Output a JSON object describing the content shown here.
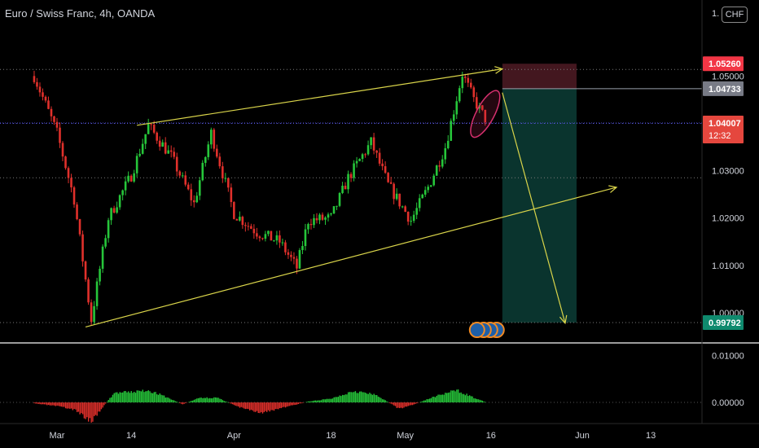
{
  "header": {
    "title": "Euro / Swiss Franc, 4h, OANDA",
    "currency_button": "CHF",
    "axis_partial": "1."
  },
  "colors": {
    "background": "#000000",
    "bull": "#26c63a",
    "bear": "#e0302b",
    "trendline": "#d9d44a",
    "stop_zone": "#4a1a22",
    "target_zone": "#0b3a33",
    "current_price_label": "#e5473e",
    "entry_label": "#787b86",
    "target_label": "#0f8a6e",
    "stop_label": "#f23645"
  },
  "chart_data": [
    {
      "type": "candlestick",
      "title": "Euro / Swiss Franc, 4h, OANDA",
      "x_tick_labels": [
        "Mar",
        "14",
        "Apr",
        "18",
        "May",
        "16",
        "Jun",
        "13"
      ],
      "y_tick_labels": [
        "1.05000",
        "1.03000",
        "1.02000",
        "1.01000",
        "1.00000"
      ],
      "ylim": [
        0.9938,
        1.0578
      ],
      "grid": false,
      "anchors": [
        [
          "Feb 25",
          1.05
        ],
        [
          "Mar 1",
          1.038
        ],
        [
          "Mar 4",
          1.024
        ],
        [
          "Mar 7",
          0.9985
        ],
        [
          "Mar 10",
          1.02
        ],
        [
          "Mar 14",
          1.029
        ],
        [
          "Mar 17",
          1.0395
        ],
        [
          "Mar 21",
          1.033
        ],
        [
          "Mar 25",
          1.023
        ],
        [
          "Mar 28",
          1.038
        ],
        [
          "Apr 1",
          1.021
        ],
        [
          "Apr 5",
          1.017
        ],
        [
          "Apr 9",
          1.015
        ],
        [
          "Apr 12",
          1.0095
        ],
        [
          "Apr 14",
          1.0195
        ],
        [
          "Apr 18",
          1.02
        ],
        [
          "Apr 21",
          1.0285
        ],
        [
          "Apr 25",
          1.036
        ],
        [
          "Apr 28",
          1.027
        ],
        [
          "May 2",
          1.0195
        ],
        [
          "May 5",
          1.0265
        ],
        [
          "May 8",
          1.035
        ],
        [
          "May 11",
          1.0505
        ],
        [
          "May 13",
          1.045
        ],
        [
          "May 15",
          1.041
        ]
      ],
      "current_price": 1.04007,
      "countdown": "12:32",
      "position": {
        "stop": 1.0526,
        "entry": 1.04733,
        "target": 0.99792,
        "start": "May 18",
        "end": "May 31"
      },
      "price_tags": [
        {
          "label": "1.05260",
          "value": 1.0526,
          "kind": "stop"
        },
        {
          "label": "1.04733",
          "value": 1.04733,
          "kind": "entry"
        },
        {
          "label": "1.04007",
          "value": 1.04007,
          "kind": "current"
        },
        {
          "label": "0.99792",
          "value": 0.99792,
          "kind": "target"
        }
      ],
      "dotted_levels": [
        1.0514,
        1.04,
        1.0285,
        0.99792
      ],
      "trendlines": [
        {
          "from": [
            "Mar 15",
            1.0396
          ],
          "to": [
            "May 18",
            1.0515
          ],
          "arrow": true
        },
        {
          "from": [
            "Mar 6",
            0.997
          ],
          "to": [
            "Jun 7",
            1.0265
          ],
          "arrow": true
        },
        {
          "from": [
            "May 18",
            1.0465
          ],
          "to": [
            "May 29",
            0.9978
          ],
          "arrow": true
        }
      ],
      "annotation": "ellipse",
      "event_markers": 4
    },
    {
      "type": "bar",
      "title": "",
      "y_tick_labels": [
        "0.01000",
        "0.00000"
      ],
      "ylim": [
        -0.0045,
        0.0125
      ],
      "profile": [
        [
          "Feb 25",
          -0.0002
        ],
        [
          "Mar 1",
          -0.0008
        ],
        [
          "Mar 4",
          -0.0015
        ],
        [
          "Mar 7",
          -0.004
        ],
        [
          "Mar 9",
          -0.001
        ],
        [
          "Mar 11",
          0.002
        ],
        [
          "Mar 14",
          0.0022
        ],
        [
          "Mar 17",
          0.0026
        ],
        [
          "Mar 20",
          0.0012
        ],
        [
          "Mar 23",
          -0.0004
        ],
        [
          "Mar 26",
          0.001
        ],
        [
          "Mar 29",
          0.001
        ],
        [
          "Apr 2",
          -0.001
        ],
        [
          "Apr 6",
          -0.0022
        ],
        [
          "Apr 10",
          -0.001
        ],
        [
          "Apr 14",
          0.0002
        ],
        [
          "Apr 18",
          0.0008
        ],
        [
          "Apr 22",
          0.0025
        ],
        [
          "Apr 26",
          0.0015
        ],
        [
          "Apr 30",
          -0.0014
        ],
        [
          "May 3",
          -0.0002
        ],
        [
          "May 6",
          0.0012
        ],
        [
          "May 10",
          0.0026
        ],
        [
          "May 13",
          0.001
        ],
        [
          "May 15",
          0.0001
        ]
      ]
    }
  ]
}
